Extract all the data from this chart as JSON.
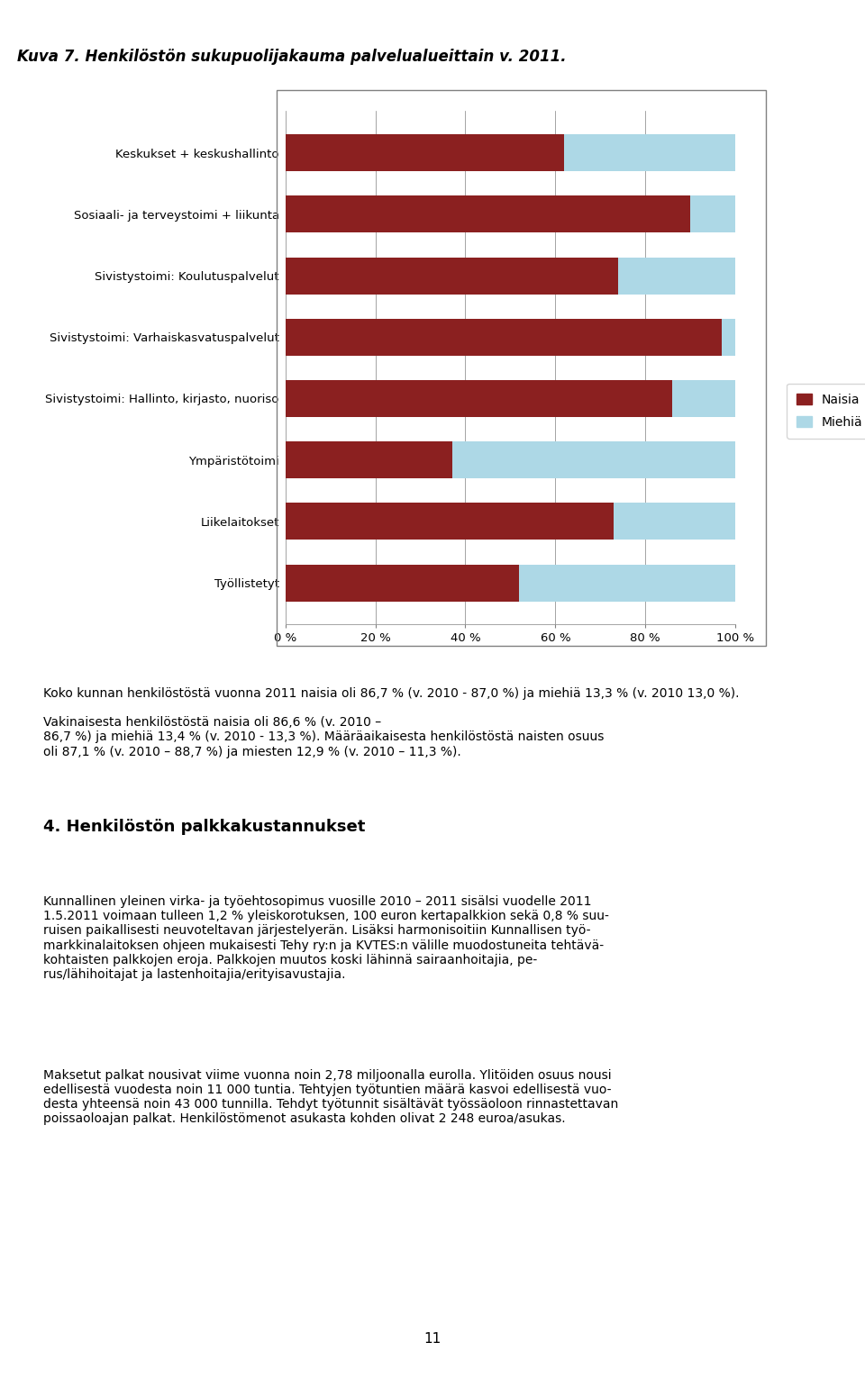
{
  "title": "Kuva 7. Henkilöstön sukupuolijakauma palvelualueittain v. 2011.",
  "categories": [
    "Keskukset + keskushallinto",
    "Sosiaali- ja terveystoimi + liikunta",
    "Sivistystoimi: Koulutuspalvelut",
    "Sivistystoimi: Varhaiskasvatuspalvelut",
    "Sivistystoimi: Hallinto, kirjasto, nuoriso",
    "Ympäristötoimi",
    "Liikelaitokset",
    "Työllistetyt"
  ],
  "naisia": [
    62,
    90,
    74,
    97,
    86,
    37,
    73,
    52
  ],
  "miehia": [
    38,
    10,
    26,
    3,
    14,
    63,
    27,
    48
  ],
  "naisia_color": "#8B2020",
  "miehia_color": "#ADD8E6",
  "legend_naisia": "Naisia",
  "legend_miehia": "Miehiä",
  "xlabel_ticks": [
    "0 %",
    "20 %",
    "40 %",
    "60 %",
    "80 %",
    "100 %"
  ],
  "xlabel_vals": [
    0,
    20,
    40,
    60,
    80,
    100
  ],
  "body_text_lines": [
    "Koko kunnan henkilöstöstä vuonna 2011 naisia oli 86,7 % (v. 2010 - 87,0 %) ja miehiä 13,3 % (v. 2010 13,0 %).",
    "",
    "Vakinaisesta henkilöstöstä naisia oli 86,6 % (v. 2010 –",
    "86,7 %) ja miehiä 13,4 % (v. 2010 - 13,3 %). Määräaikaisesta henkilöstöstä naisten osuus",
    "oli 87,1 % (v. 2010 – 88,7 %) ja miesten 12,9 % (v. 2010 – 11,3 %)."
  ]
}
